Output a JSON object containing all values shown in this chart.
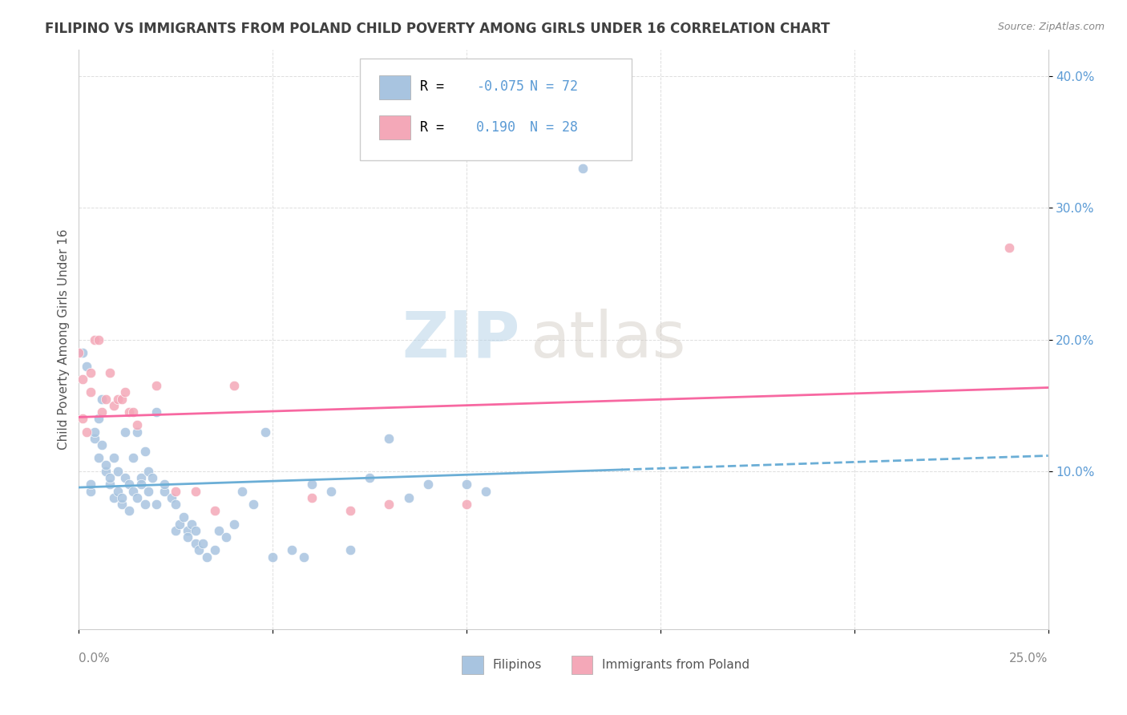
{
  "title": "FILIPINO VS IMMIGRANTS FROM POLAND CHILD POVERTY AMONG GIRLS UNDER 16 CORRELATION CHART",
  "source": "Source: ZipAtlas.com",
  "ylabel": "Child Poverty Among Girls Under 16",
  "xlim": [
    0.0,
    0.25
  ],
  "ylim": [
    -0.02,
    0.42
  ],
  "r_filipino": -0.075,
  "n_filipino": 72,
  "r_poland": 0.19,
  "n_poland": 28,
  "color_filipino": "#a8c4e0",
  "color_poland": "#f4a8b8",
  "color_trendline_filipino": "#6baed6",
  "color_trendline_poland": "#f768a1",
  "watermark_zip": "ZIP",
  "watermark_atlas": "atlas",
  "filipino_scatter": [
    [
      0.001,
      0.19
    ],
    [
      0.002,
      0.18
    ],
    [
      0.003,
      0.085
    ],
    [
      0.003,
      0.09
    ],
    [
      0.004,
      0.125
    ],
    [
      0.004,
      0.13
    ],
    [
      0.005,
      0.11
    ],
    [
      0.005,
      0.14
    ],
    [
      0.006,
      0.12
    ],
    [
      0.006,
      0.155
    ],
    [
      0.007,
      0.1
    ],
    [
      0.007,
      0.105
    ],
    [
      0.008,
      0.09
    ],
    [
      0.008,
      0.095
    ],
    [
      0.009,
      0.11
    ],
    [
      0.009,
      0.08
    ],
    [
      0.01,
      0.1
    ],
    [
      0.01,
      0.085
    ],
    [
      0.011,
      0.075
    ],
    [
      0.011,
      0.08
    ],
    [
      0.012,
      0.095
    ],
    [
      0.012,
      0.13
    ],
    [
      0.013,
      0.09
    ],
    [
      0.013,
      0.07
    ],
    [
      0.014,
      0.085
    ],
    [
      0.014,
      0.11
    ],
    [
      0.015,
      0.08
    ],
    [
      0.015,
      0.13
    ],
    [
      0.016,
      0.095
    ],
    [
      0.016,
      0.09
    ],
    [
      0.017,
      0.115
    ],
    [
      0.017,
      0.075
    ],
    [
      0.018,
      0.1
    ],
    [
      0.018,
      0.085
    ],
    [
      0.019,
      0.095
    ],
    [
      0.02,
      0.075
    ],
    [
      0.02,
      0.145
    ],
    [
      0.022,
      0.085
    ],
    [
      0.022,
      0.09
    ],
    [
      0.024,
      0.08
    ],
    [
      0.025,
      0.075
    ],
    [
      0.025,
      0.055
    ],
    [
      0.026,
      0.06
    ],
    [
      0.027,
      0.065
    ],
    [
      0.028,
      0.055
    ],
    [
      0.028,
      0.05
    ],
    [
      0.029,
      0.06
    ],
    [
      0.03,
      0.045
    ],
    [
      0.03,
      0.055
    ],
    [
      0.031,
      0.04
    ],
    [
      0.032,
      0.045
    ],
    [
      0.033,
      0.035
    ],
    [
      0.035,
      0.04
    ],
    [
      0.036,
      0.055
    ],
    [
      0.038,
      0.05
    ],
    [
      0.04,
      0.06
    ],
    [
      0.042,
      0.085
    ],
    [
      0.045,
      0.075
    ],
    [
      0.048,
      0.13
    ],
    [
      0.05,
      0.035
    ],
    [
      0.055,
      0.04
    ],
    [
      0.058,
      0.035
    ],
    [
      0.06,
      0.09
    ],
    [
      0.065,
      0.085
    ],
    [
      0.07,
      0.04
    ],
    [
      0.075,
      0.095
    ],
    [
      0.08,
      0.125
    ],
    [
      0.085,
      0.08
    ],
    [
      0.09,
      0.09
    ],
    [
      0.1,
      0.09
    ],
    [
      0.105,
      0.085
    ],
    [
      0.13,
      0.33
    ]
  ],
  "poland_scatter": [
    [
      0.0,
      0.19
    ],
    [
      0.001,
      0.17
    ],
    [
      0.001,
      0.14
    ],
    [
      0.002,
      0.13
    ],
    [
      0.003,
      0.16
    ],
    [
      0.003,
      0.175
    ],
    [
      0.004,
      0.2
    ],
    [
      0.005,
      0.2
    ],
    [
      0.006,
      0.145
    ],
    [
      0.007,
      0.155
    ],
    [
      0.008,
      0.175
    ],
    [
      0.009,
      0.15
    ],
    [
      0.01,
      0.155
    ],
    [
      0.011,
      0.155
    ],
    [
      0.012,
      0.16
    ],
    [
      0.013,
      0.145
    ],
    [
      0.014,
      0.145
    ],
    [
      0.015,
      0.135
    ],
    [
      0.02,
      0.165
    ],
    [
      0.025,
      0.085
    ],
    [
      0.03,
      0.085
    ],
    [
      0.035,
      0.07
    ],
    [
      0.04,
      0.165
    ],
    [
      0.06,
      0.08
    ],
    [
      0.07,
      0.07
    ],
    [
      0.08,
      0.075
    ],
    [
      0.1,
      0.075
    ],
    [
      0.24,
      0.27
    ]
  ]
}
